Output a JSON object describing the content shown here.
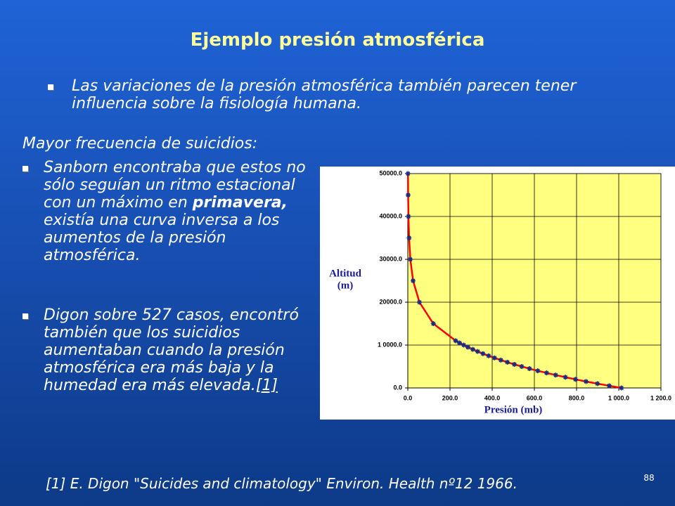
{
  "slide": {
    "title": "Ejemplo presión atmosférica",
    "intro_bullet": "Las variaciones de la presión atmosférica también parecen tener influencia sobre la fisiología humana.",
    "heading": "Mayor frecuencia de suicidios:",
    "bullets": [
      [
        "Sanborn encontraba que estos no sólo seguían un ritmo estacional con un máximo en ",
        "primavera,",
        " existía una curva inversa a los aumentos de la presión atmosférica."
      ],
      [
        "Digon sobre 527 casos, encontró también que los suicidios aumentaban cuando la presión atmosférica era más baja y la humedad era más elevada.",
        "[1]"
      ]
    ],
    "footnote": "[1] E. Digon \"Suicides and climatology\" Environ. Health nº12 1966.",
    "page_number": "88"
  },
  "chart_data": {
    "type": "scatter",
    "ylabel": [
      "Altitud",
      "(m)"
    ],
    "xlabel": "Presión (mb)",
    "x": [
      0.8,
      1.5,
      3,
      6,
      12,
      25,
      55,
      121,
      227,
      245,
      265,
      285,
      308,
      331,
      356,
      383,
      411,
      441,
      472,
      505,
      540,
      577,
      616,
      658,
      701,
      747,
      795,
      845,
      899,
      955,
      1013
    ],
    "values": [
      50000,
      45000,
      40000,
      35000,
      30000,
      25000,
      20000,
      15000,
      11000,
      10500,
      10000,
      9500,
      9000,
      8500,
      8000,
      7500,
      7000,
      6500,
      6000,
      5500,
      5000,
      4500,
      4000,
      3500,
      3000,
      2500,
      2000,
      1500,
      1000,
      500,
      0
    ],
    "marker_color": "#1c2a80",
    "line_color": "#ff0000",
    "plot_color": "#ffff80",
    "xlim": [
      0,
      1200
    ],
    "ylim": [
      0,
      50000
    ],
    "xticks": [
      {
        "value": 0,
        "label": "0.0"
      },
      {
        "value": 200,
        "label": "200.0"
      },
      {
        "value": 400,
        "label": "400.0"
      },
      {
        "value": 600,
        "label": "600.0"
      },
      {
        "value": 800,
        "label": "800.0"
      },
      {
        "value": 1000,
        "label": "1 000.0"
      },
      {
        "value": 1200,
        "label": "1 200.0"
      }
    ],
    "yticks": [
      {
        "value": 0,
        "label": "0.0"
      },
      {
        "value": 10000,
        "label": "1 0000.0"
      },
      {
        "value": 20000,
        "label": "20000.0"
      },
      {
        "value": 30000,
        "label": "30000.0"
      },
      {
        "value": 40000,
        "label": "40000.0"
      },
      {
        "value": 50000,
        "label": "50000.0"
      }
    ],
    "grid": true
  }
}
